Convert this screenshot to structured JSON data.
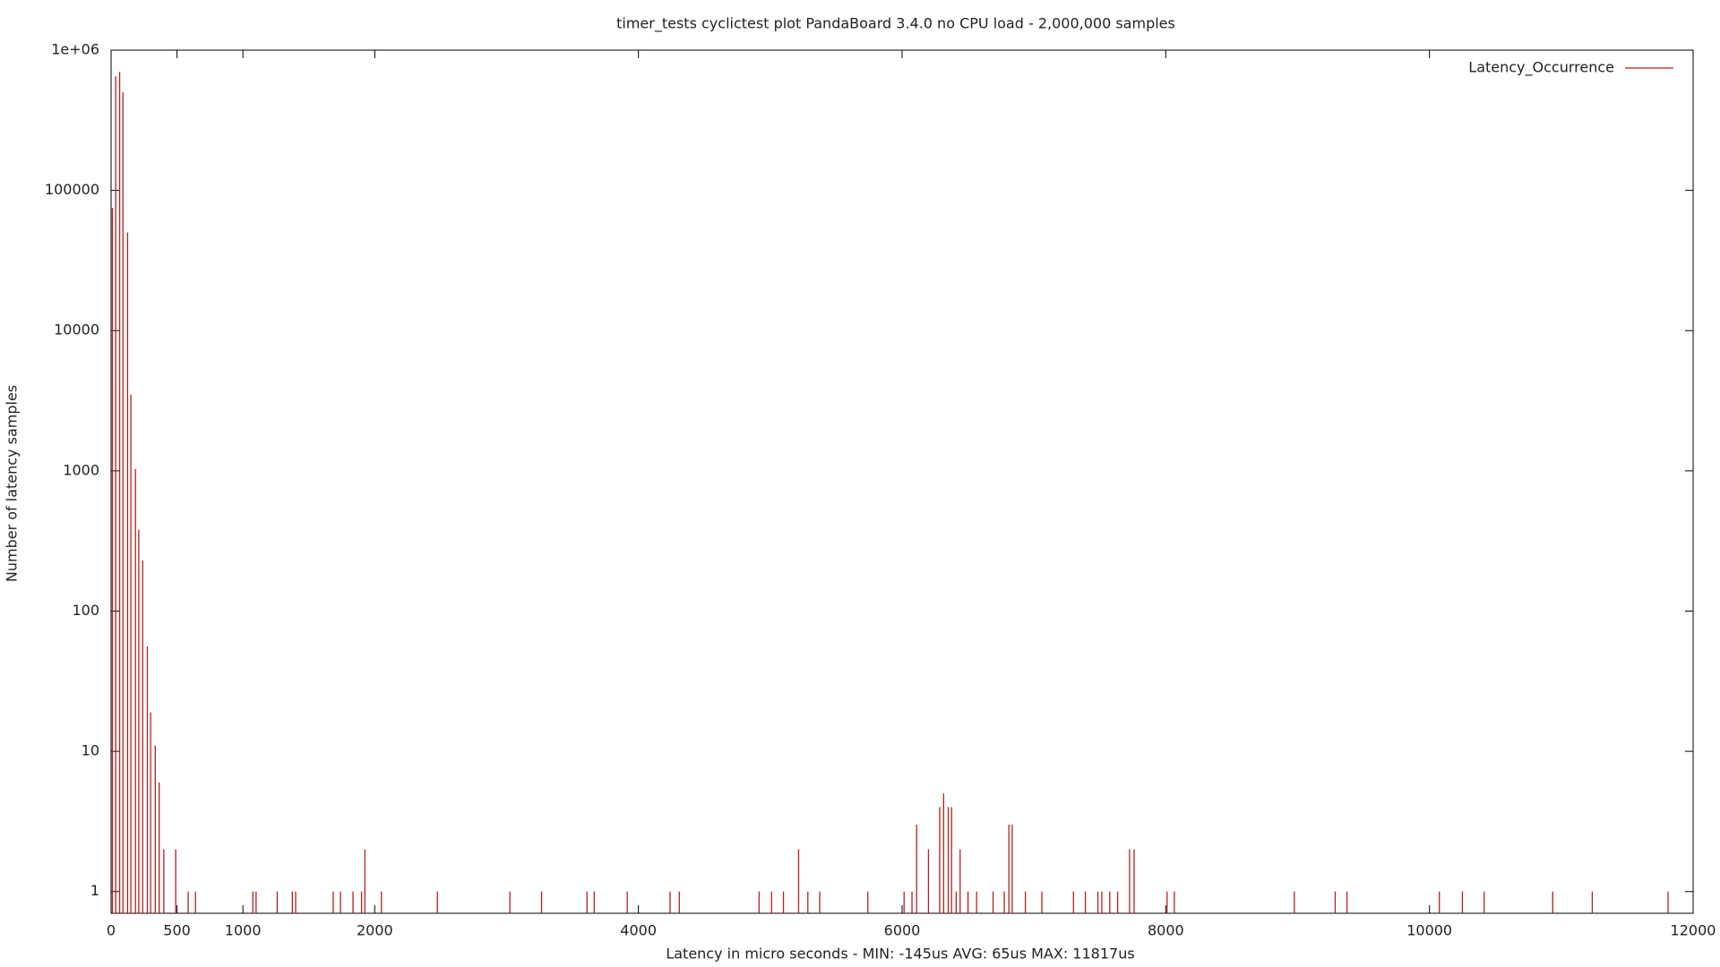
{
  "chart_data": {
    "type": "impulse",
    "title": "timer_tests cyclictest plot PandaBoard 3.4.0 no CPU load  -  2,000,000 samples",
    "x_label": "Latency in micro seconds - MIN:  -145us  AVG: 65us MAX: 11817us",
    "y_label": "Number of latency samples",
    "log_y": true,
    "legend": "top-right",
    "xlim": [
      0,
      12000
    ],
    "xticks": [
      0,
      500,
      1000,
      2000,
      4000,
      6000,
      8000,
      10000,
      12000
    ],
    "ylim": [
      0.7,
      1000000
    ],
    "yticks": [
      1,
      10,
      100,
      1000,
      10000,
      100000,
      {
        "value": 1000000,
        "label": "1e+06"
      }
    ],
    "x": [
      10,
      35,
      65,
      90,
      125,
      150,
      185,
      210,
      240,
      275,
      300,
      335,
      365,
      400,
      490,
      585,
      640,
      1075,
      1100,
      1260,
      1375,
      1400,
      1685,
      1740,
      1835,
      1900,
      1925,
      2050,
      2475,
      3025,
      3265,
      3610,
      3665,
      3915,
      4240,
      4310,
      4915,
      5010,
      5100,
      5215,
      5285,
      5375,
      5740,
      6015,
      6075,
      6110,
      6200,
      6285,
      6315,
      6350,
      6375,
      6410,
      6440,
      6500,
      6565,
      6690,
      6775,
      6810,
      6835,
      6935,
      7060,
      7300,
      7390,
      7485,
      7515,
      7575,
      7635,
      7725,
      7760,
      8010,
      8065,
      8975,
      9285,
      9375,
      10075,
      10250,
      10415,
      10935,
      11235,
      11810
    ],
    "series": [
      {
        "name": "Latency_Occurrence",
        "color": "#b22222",
        "values": [
          75000,
          650000,
          700000,
          500000,
          50000,
          3500,
          1030,
          380,
          230,
          56,
          19,
          11,
          6,
          2,
          2,
          1,
          1,
          1,
          1,
          1,
          1,
          1,
          1,
          1,
          1,
          1,
          2,
          1,
          1,
          1,
          1,
          1,
          1,
          1,
          1,
          1,
          1,
          1,
          1,
          2,
          1,
          1,
          1,
          1,
          1,
          3,
          2,
          4,
          5,
          4,
          4,
          1,
          2,
          1,
          1,
          1,
          1,
          3,
          3,
          1,
          1,
          1,
          1,
          1,
          1,
          1,
          1,
          2,
          2,
          1,
          1,
          1,
          1,
          1,
          1,
          1,
          1,
          1,
          1,
          1
        ]
      }
    ]
  }
}
